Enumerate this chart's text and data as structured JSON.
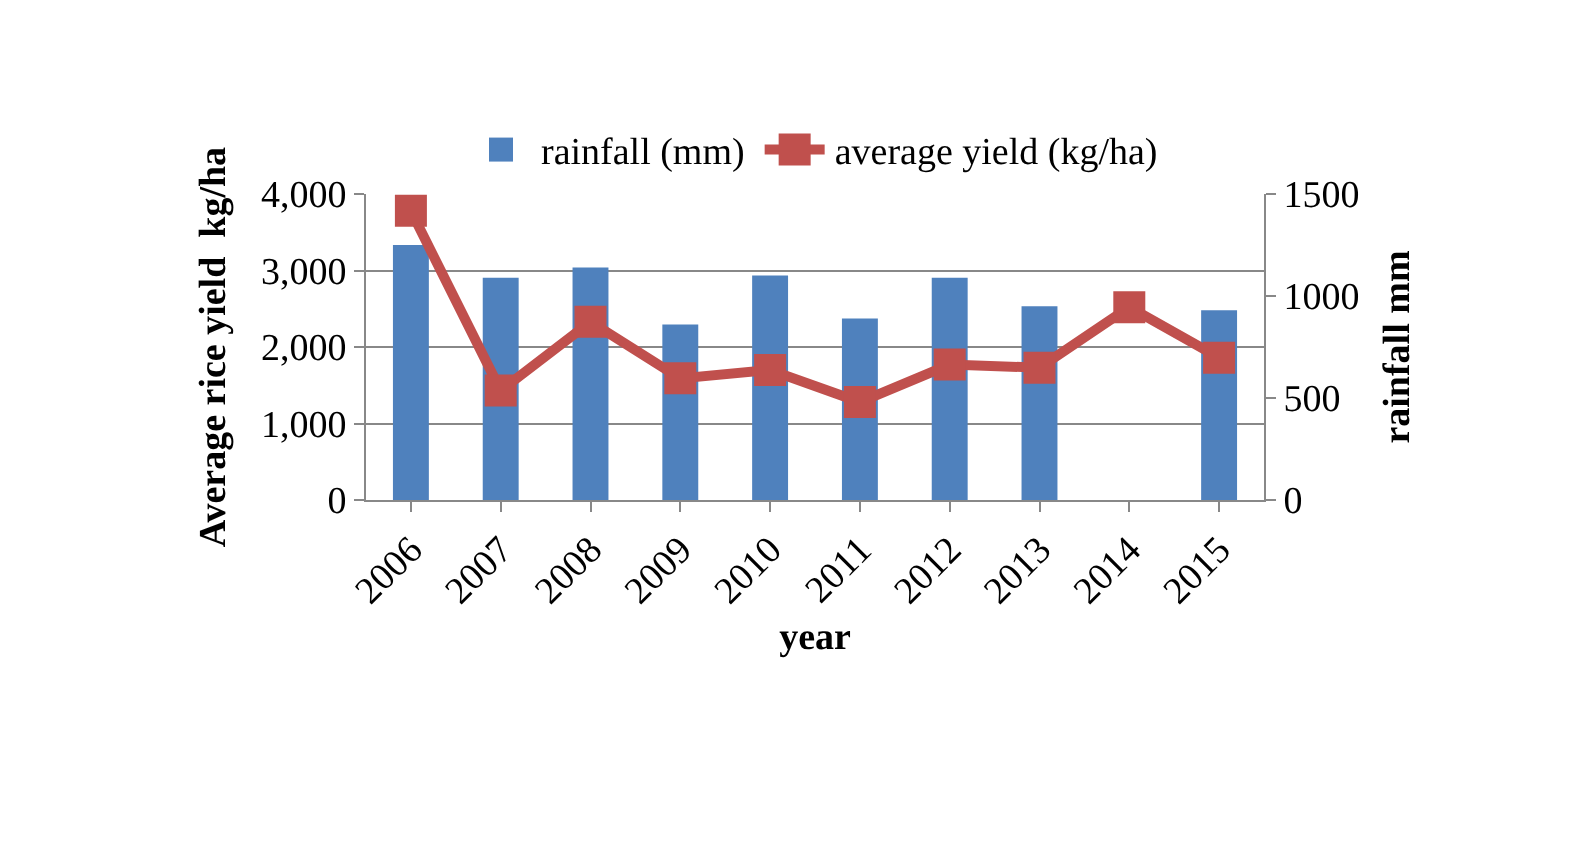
{
  "chart_data": {
    "type": "bar",
    "xlabel": "year",
    "ylabel": "Average rice yield  kg/ha",
    "y2label": "rainfall mm",
    "categories": [
      "2006",
      "2007",
      "2008",
      "2009",
      "2010",
      "2011",
      "2012",
      "2013",
      "2014",
      "2015"
    ],
    "series": [
      {
        "name": "rainfall (mm)",
        "axis": "y2",
        "color": "#4f81bd",
        "values": [
          1250,
          1090,
          1140,
          860,
          1100,
          890,
          1090,
          950,
          null,
          930
        ]
      },
      {
        "name": "average yield (kg/ha)",
        "type": "line",
        "color": "#c0504d",
        "marker": "square",
        "values": [
          3780,
          1430,
          2330,
          1590,
          1700,
          1280,
          1770,
          1730,
          2520,
          1860
        ]
      }
    ],
    "ylim": [
      0,
      4000
    ],
    "yticks": [
      {
        "value": 0,
        "label": "0"
      },
      {
        "value": 1000,
        "label": "1,000"
      },
      {
        "value": 2000,
        "label": "2,000"
      },
      {
        "value": 3000,
        "label": "3,000"
      },
      {
        "value": 4000,
        "label": "4,000"
      }
    ],
    "y2lim": [
      0,
      1500
    ],
    "y2ticks": [
      0,
      500,
      1000,
      1500
    ],
    "grid": "y",
    "legend": "top"
  }
}
